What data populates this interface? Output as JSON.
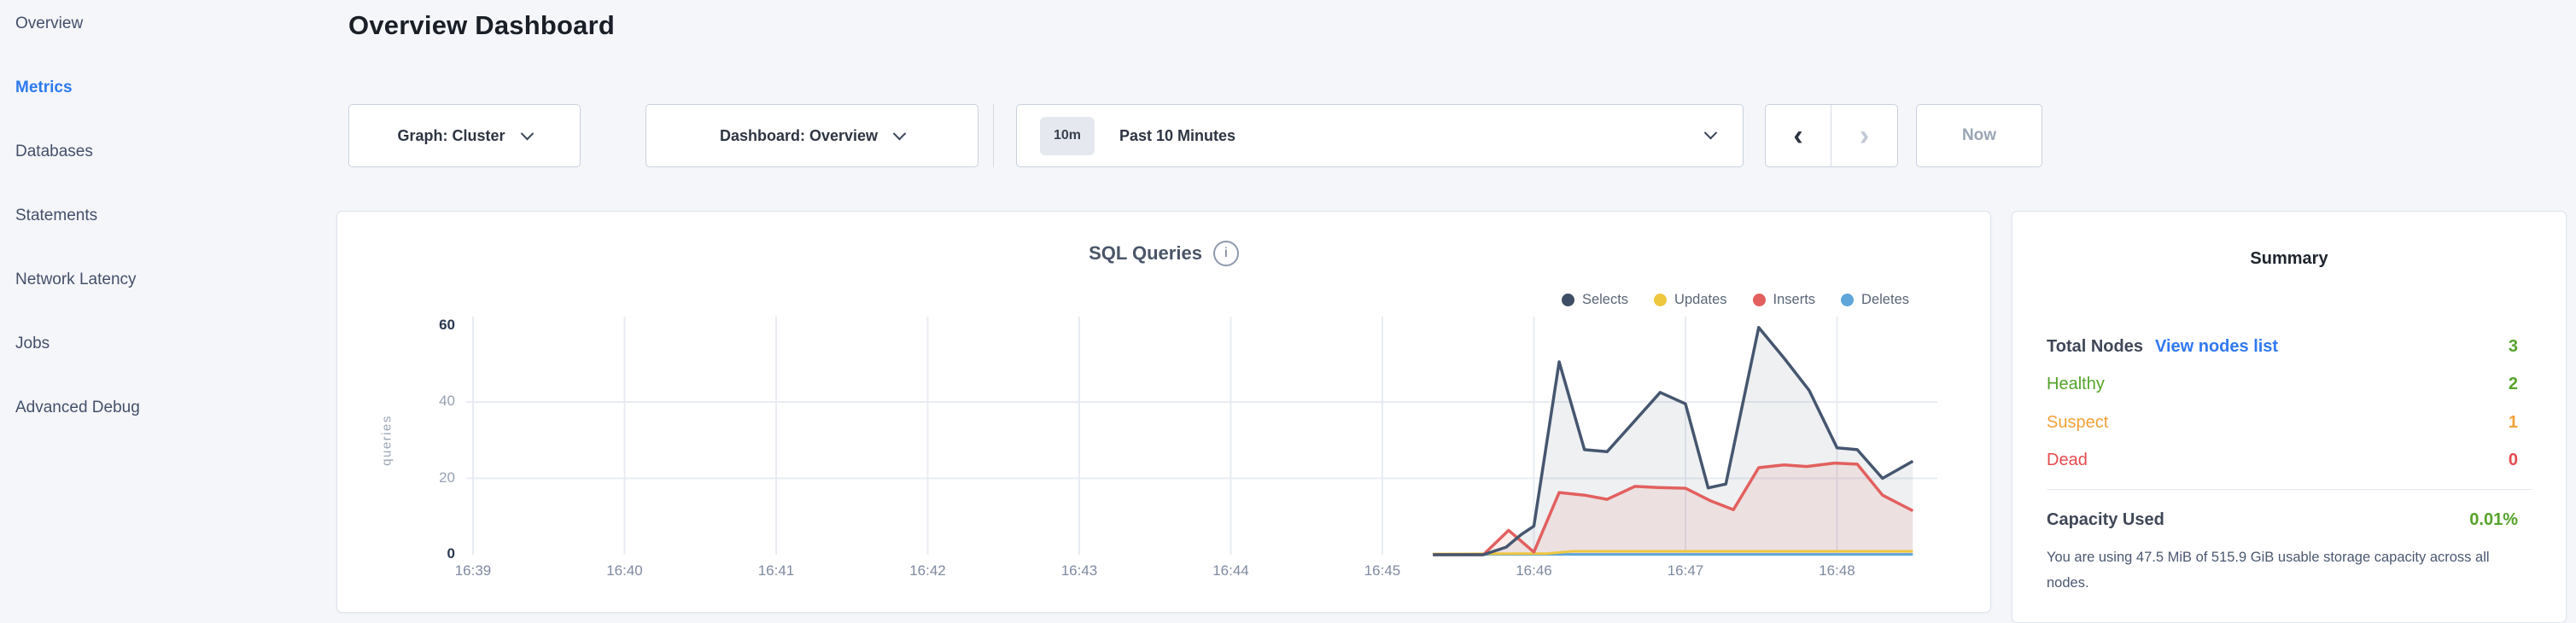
{
  "sidebar": {
    "items": [
      {
        "label": "Overview",
        "active": false
      },
      {
        "label": "Metrics",
        "active": true
      },
      {
        "label": "Databases",
        "active": false
      },
      {
        "label": "Statements",
        "active": false
      },
      {
        "label": "Network Latency",
        "active": false
      },
      {
        "label": "Jobs",
        "active": false
      },
      {
        "label": "Advanced Debug",
        "active": false
      }
    ]
  },
  "header": {
    "title": "Overview Dashboard"
  },
  "controls": {
    "graph_dropdown_label": "Graph: Cluster",
    "dashboard_dropdown_label": "Dashboard: Overview",
    "time_picker": {
      "badge": "10m",
      "label": "Past 10 Minutes"
    },
    "prev_icon": "‹",
    "next_icon": "›",
    "now_label": "Now"
  },
  "chart": {
    "title": "SQL Queries",
    "info_icon": "i",
    "legend": [
      {
        "label": "Selects",
        "color": "#3e4d66"
      },
      {
        "label": "Updates",
        "color": "#eec73f"
      },
      {
        "label": "Inserts",
        "color": "#e2605e"
      },
      {
        "label": "Deletes",
        "color": "#5fa5d9"
      }
    ]
  },
  "chart_data": {
    "type": "area",
    "title": "SQL Queries",
    "xlabel": "",
    "ylabel": "queries",
    "xticks": [
      "16:39",
      "16:40",
      "16:41",
      "16:42",
      "16:43",
      "16:44",
      "16:45",
      "16:46",
      "16:47",
      "16:48"
    ],
    "yticks": [
      0,
      20,
      40,
      60
    ],
    "ylim": [
      0,
      63
    ],
    "grid": true,
    "legend_position": "top-right",
    "series": [
      {
        "name": "Selects",
        "color": "#46566f",
        "fill": "rgba(70,86,110,0.09)",
        "points": [
          [
            "16:45:20",
            0
          ],
          [
            "16:45:40",
            0
          ],
          [
            "16:45:49",
            2
          ],
          [
            "16:45:55",
            5.3
          ],
          [
            "16:46:00",
            7.5
          ],
          [
            "16:46:10",
            50.5
          ],
          [
            "16:46:20",
            27.5
          ],
          [
            "16:46:29",
            27
          ],
          [
            "16:46:50",
            42.5
          ],
          [
            "16:47:00",
            39.5
          ],
          [
            "16:47:09",
            17.5
          ],
          [
            "16:47:16",
            18.5
          ],
          [
            "16:47:29",
            59.5
          ],
          [
            "16:47:39",
            51.5
          ],
          [
            "16:47:49",
            43
          ],
          [
            "16:48:00",
            28
          ],
          [
            "16:48:08",
            27.5
          ],
          [
            "16:48:18",
            20
          ],
          [
            "16:48:30",
            24.5
          ]
        ]
      },
      {
        "name": "Updates",
        "color": "#eec73f",
        "fill": "none",
        "points": [
          [
            "16:45:20",
            0.2
          ],
          [
            "16:46:05",
            0.3
          ],
          [
            "16:46:15",
            0.9
          ],
          [
            "16:48:30",
            0.9
          ]
        ]
      },
      {
        "name": "Inserts",
        "color": "#e2605e",
        "fill": "rgba(226,96,94,0.11)",
        "points": [
          [
            "16:45:20",
            0
          ],
          [
            "16:45:40",
            0
          ],
          [
            "16:45:50",
            6.4
          ],
          [
            "16:46:00",
            0.7
          ],
          [
            "16:46:10",
            16.3
          ],
          [
            "16:46:20",
            15.6
          ],
          [
            "16:46:29",
            14.5
          ],
          [
            "16:46:40",
            17.9
          ],
          [
            "16:46:49",
            17.6
          ],
          [
            "16:47:00",
            17.4
          ],
          [
            "16:47:10",
            14.1
          ],
          [
            "16:47:19",
            11.8
          ],
          [
            "16:47:29",
            22.8
          ],
          [
            "16:47:39",
            23.5
          ],
          [
            "16:47:48",
            23.1
          ],
          [
            "16:47:59",
            24
          ],
          [
            "16:48:08",
            23.7
          ],
          [
            "16:48:18",
            15.6
          ],
          [
            "16:48:30",
            11.5
          ]
        ]
      },
      {
        "name": "Deletes",
        "color": "#5fa5d9",
        "fill": "none",
        "points": [
          [
            "16:45:20",
            0.1
          ],
          [
            "16:48:30",
            0.1
          ]
        ]
      }
    ]
  },
  "summary": {
    "title": "Summary",
    "rows": [
      {
        "label": "Total Nodes",
        "link": "View nodes list",
        "value": "3",
        "label_color": "#3f4757",
        "value_color": "#55a32a",
        "bold": true
      },
      {
        "label": "Healthy",
        "link": "",
        "value": "2",
        "label_color": "#55a32a",
        "value_color": "#55a32a",
        "bold": false
      },
      {
        "label": "Suspect",
        "link": "",
        "value": "1",
        "label_color": "#f2a138",
        "value_color": "#f2a138",
        "bold": false
      },
      {
        "label": "Dead",
        "link": "",
        "value": "0",
        "label_color": "#e54b50",
        "value_color": "#e54b50",
        "bold": false
      }
    ],
    "capacity": {
      "label": "Capacity Used",
      "value": "0.01%",
      "value_color": "#55a32a",
      "description": "You are using 47.5 MiB of 515.9 GiB usable storage capacity across all nodes."
    }
  }
}
